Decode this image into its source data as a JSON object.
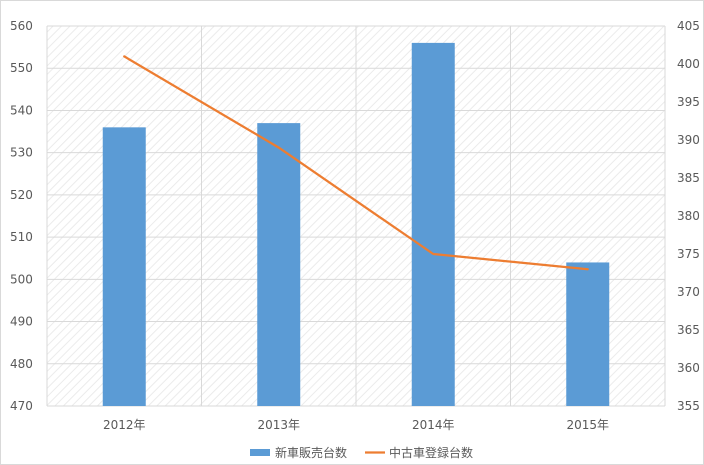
{
  "chart_data": {
    "type": "bar",
    "categories": [
      "2012年",
      "2013年",
      "2014年",
      "2015年"
    ],
    "series": [
      {
        "name": "新車販売台数",
        "type": "bar",
        "axis": "left",
        "color": "#5b9bd5",
        "values": [
          536,
          537,
          556,
          504
        ]
      },
      {
        "name": "中古車登録台数",
        "type": "line",
        "axis": "right",
        "color": "#ed7d31",
        "values": [
          401,
          389,
          375,
          373
        ]
      }
    ],
    "y_left": {
      "min": 470,
      "max": 560,
      "step": 10,
      "ticks": [
        "470",
        "480",
        "490",
        "500",
        "510",
        "520",
        "530",
        "540",
        "550",
        "560"
      ]
    },
    "y_right": {
      "min": 355,
      "max": 405,
      "step": 5,
      "ticks": [
        "355",
        "360",
        "365",
        "370",
        "375",
        "380",
        "385",
        "390",
        "395",
        "400",
        "405"
      ]
    },
    "grid": true,
    "legend_position": "bottom",
    "title": "",
    "xlabel": "",
    "ylabel": ""
  }
}
